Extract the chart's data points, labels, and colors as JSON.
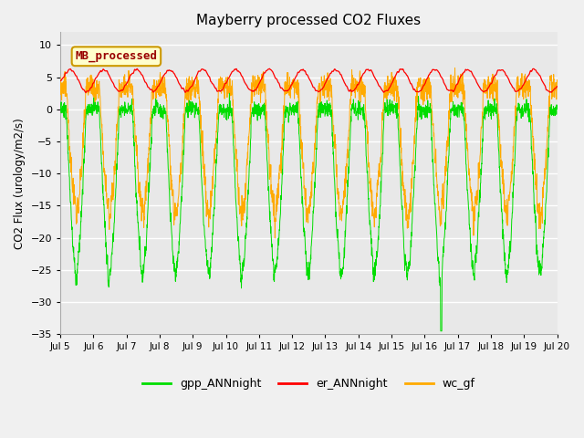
{
  "title": "Mayberry processed CO2 Fluxes",
  "ylabel": "CO2 Flux (urology/m2/s)",
  "xlabel": "",
  "ylim": [
    -35,
    12
  ],
  "yticks": [
    -35,
    -30,
    -25,
    -20,
    -15,
    -10,
    -5,
    0,
    5,
    10
  ],
  "bg_color": "#f0f0f0",
  "plot_bg": "#e8e8e8",
  "annotation_text": "MB_processed",
  "annotation_bg": "#ffffcc",
  "annotation_edge": "#cc9900",
  "annotation_text_color": "#990000",
  "line_gpp": "#00dd00",
  "line_er": "#ff0000",
  "line_wc": "#ffaa00",
  "legend_labels": [
    "gpp_ANNnight",
    "er_ANNnight",
    "wc_gf"
  ],
  "xstart": 5,
  "xend": 20,
  "n_points": 2160,
  "seed": 42
}
